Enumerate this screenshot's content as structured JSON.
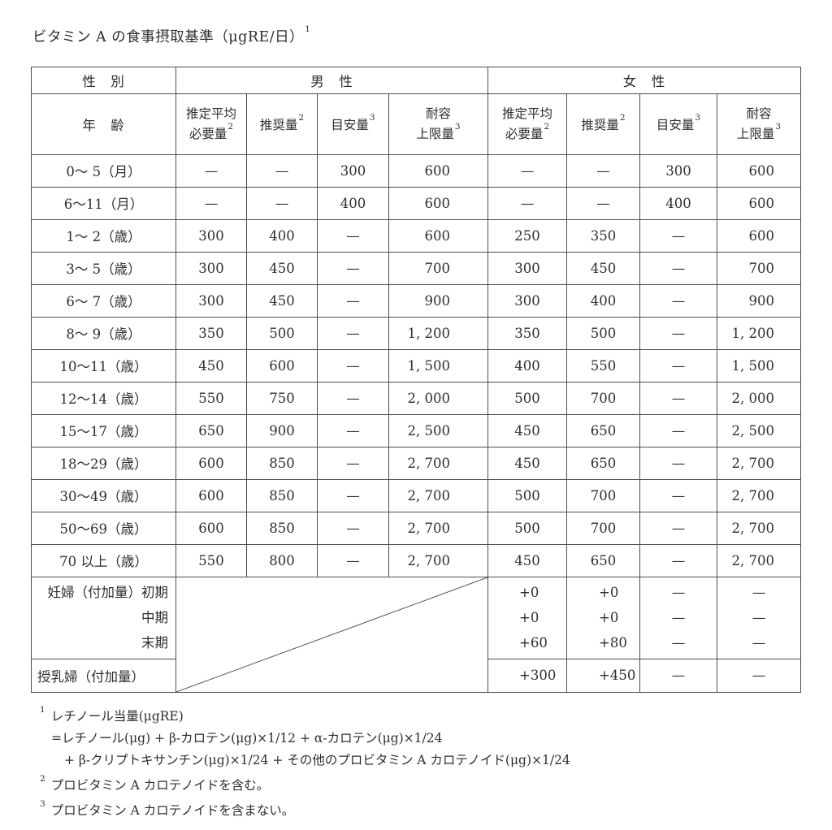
{
  "title": {
    "text": "ビタミン A の食事摂取基準（μgRE/日）",
    "sup": "1"
  },
  "table": {
    "corner": {
      "gender": "性　別",
      "age": "年　齢"
    },
    "groups": {
      "male": "男　性",
      "female": "女　性"
    },
    "columns": [
      {
        "line1": "推定平均",
        "line2": "必要量",
        "sup": "2"
      },
      {
        "line1": "推奨量",
        "sup": "2"
      },
      {
        "line1": "目安量",
        "sup": "3"
      },
      {
        "line1": "耐容",
        "line2": "上限量",
        "sup": "3"
      }
    ],
    "rows": [
      {
        "label": "0〜 5（月）",
        "values": [
          "—",
          "—",
          "300",
          "600",
          "—",
          "—",
          "300",
          "600"
        ]
      },
      {
        "label": "6〜11（月）",
        "values": [
          "—",
          "—",
          "400",
          "600",
          "—",
          "—",
          "400",
          "600"
        ]
      },
      {
        "label": "1〜 2（歳）",
        "values": [
          "300",
          "400",
          "—",
          "600",
          "250",
          "350",
          "—",
          "600"
        ]
      },
      {
        "label": "3〜 5（歳）",
        "values": [
          "300",
          "450",
          "—",
          "700",
          "300",
          "450",
          "—",
          "700"
        ]
      },
      {
        "label": "6〜 7（歳）",
        "values": [
          "300",
          "450",
          "—",
          "900",
          "300",
          "400",
          "—",
          "900"
        ]
      },
      {
        "label": "8〜 9（歳）",
        "values": [
          "350",
          "500",
          "—",
          "1, 200",
          "350",
          "500",
          "—",
          "1, 200"
        ]
      },
      {
        "label": "10〜11（歳）",
        "values": [
          "450",
          "600",
          "—",
          "1, 500",
          "400",
          "550",
          "—",
          "1, 500"
        ]
      },
      {
        "label": "12〜14（歳）",
        "values": [
          "550",
          "750",
          "—",
          "2, 000",
          "500",
          "700",
          "—",
          "2, 000"
        ]
      },
      {
        "label": "15〜17（歳）",
        "values": [
          "650",
          "900",
          "—",
          "2, 500",
          "450",
          "650",
          "—",
          "2, 500"
        ]
      },
      {
        "label": "18〜29（歳）",
        "values": [
          "600",
          "850",
          "—",
          "2, 700",
          "450",
          "650",
          "—",
          "2, 700"
        ]
      },
      {
        "label": "30〜49（歳）",
        "values": [
          "600",
          "850",
          "—",
          "2, 700",
          "500",
          "700",
          "—",
          "2, 700"
        ]
      },
      {
        "label": "50〜69（歳）",
        "values": [
          "600",
          "850",
          "—",
          "2, 700",
          "500",
          "700",
          "—",
          "2, 700"
        ]
      },
      {
        "label": "70 以上（歳）",
        "values": [
          "550",
          "800",
          "—",
          "2, 700",
          "450",
          "650",
          "—",
          "2, 700"
        ]
      }
    ],
    "pregnant": {
      "label": "妊婦（付加量）初期",
      "stage2": "中期",
      "stage3": "末期",
      "female": [
        [
          "+0",
          "+0",
          "+60"
        ],
        [
          "+0",
          "+0",
          "+80"
        ],
        [
          "—",
          "—",
          "—"
        ],
        [
          "—",
          "—",
          "—"
        ]
      ]
    },
    "lactating": {
      "label": "授乳婦（付加量）",
      "female": [
        "+300",
        "+450",
        "—",
        "—"
      ]
    }
  },
  "footnotes": [
    {
      "sup": "1",
      "lines": [
        "レチノール当量(μgRE)",
        "=レチノール(μg) + β-カロテン(μg)×1/12 + α-カロテン(μg)×1/24",
        "+ β-クリプトキサンチン(μg)×1/24 + その他のプロビタミン A カロテノイド(μg)×1/24"
      ]
    },
    {
      "sup": "2",
      "lines": [
        "プロビタミン A カロテノイドを含む。"
      ]
    },
    {
      "sup": "3",
      "lines": [
        "プロビタミン A カロテノイドを含まない。"
      ]
    }
  ],
  "colors": {
    "text": "#2e2e2e",
    "border": "#4d4d4d",
    "background": "#ffffff"
  }
}
